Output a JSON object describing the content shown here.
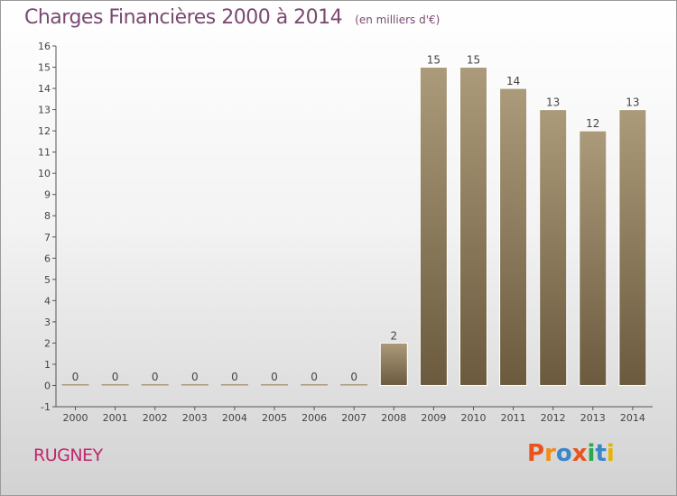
{
  "header": {
    "title": "Charges Financières 2000 à 2014",
    "subtitle": "(en milliers d'€)"
  },
  "footer": {
    "commune": "RUGNEY",
    "logo": "Proxiti",
    "logo_colors": [
      "#e8531f",
      "#f08c1a",
      "#3a86c8",
      "#e8531f",
      "#2aa84a",
      "#3a86c8",
      "#e5b400"
    ]
  },
  "colors": {
    "bar_top": "#ab9b7a",
    "bar_bottom": "#6b5a3e",
    "title": "#7a4a72",
    "commune": "#c0266e"
  },
  "chart_data": {
    "type": "bar",
    "categories": [
      "2000",
      "2001",
      "2002",
      "2003",
      "2004",
      "2005",
      "2006",
      "2007",
      "2008",
      "2009",
      "2010",
      "2011",
      "2012",
      "2013",
      "2014"
    ],
    "values": [
      0,
      0,
      0,
      0,
      0,
      0,
      0,
      0,
      2,
      15,
      15,
      14,
      13,
      12,
      13
    ],
    "data_labels": [
      "0",
      "0",
      "0",
      "0",
      "0",
      "0",
      "0",
      "0",
      "2",
      "15",
      "15",
      "14",
      "13",
      "12",
      "13"
    ],
    "y_ticks": [
      -1,
      0,
      1,
      2,
      3,
      4,
      5,
      6,
      7,
      8,
      9,
      10,
      11,
      12,
      13,
      14,
      15,
      16
    ],
    "ylim": [
      -1,
      16
    ],
    "grid": false,
    "legend": "none"
  }
}
